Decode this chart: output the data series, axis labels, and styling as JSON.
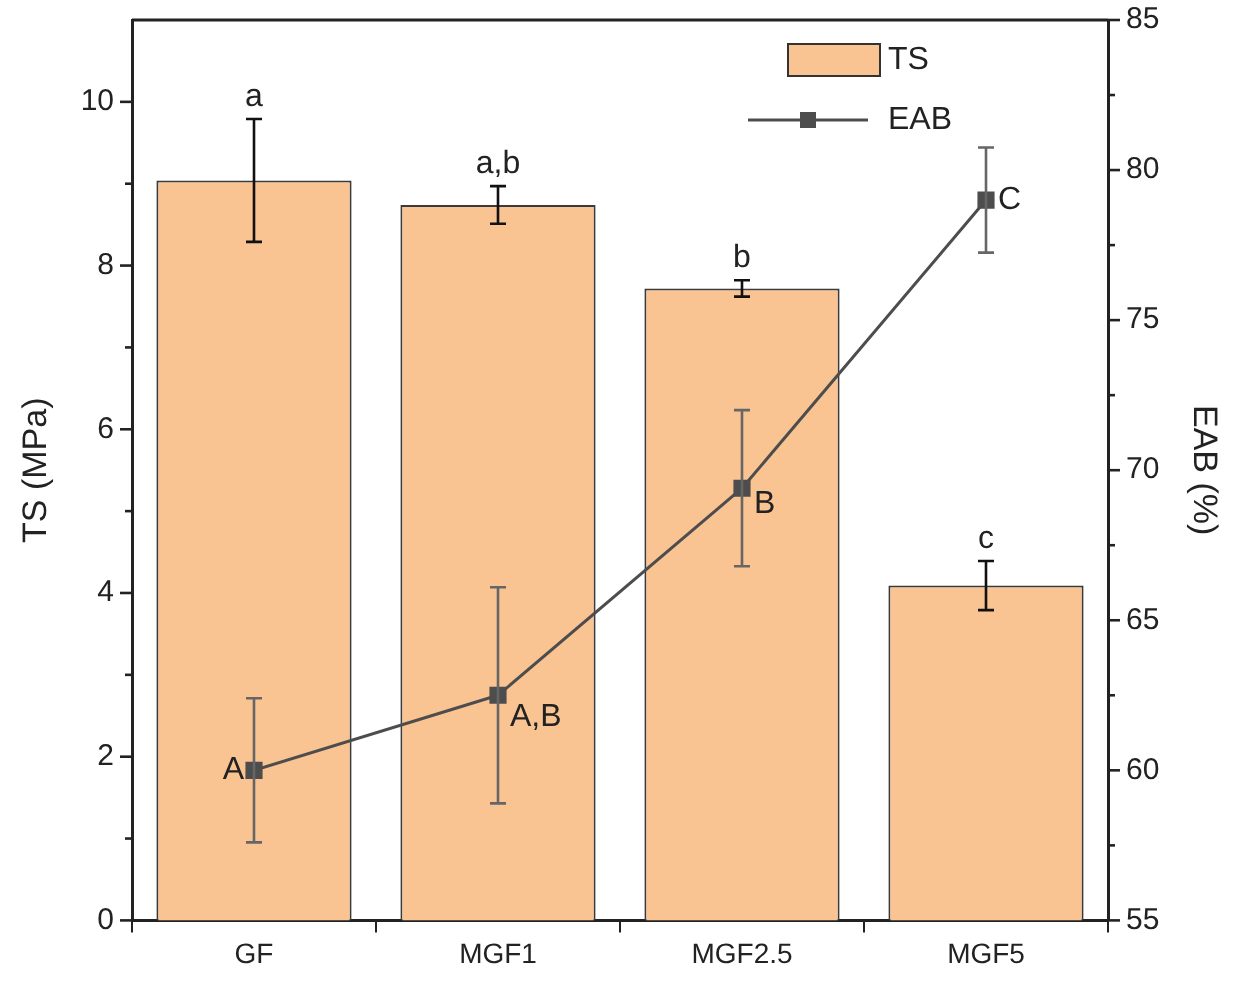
{
  "chart_data": {
    "type": "bar",
    "xlabel": null,
    "ylabel": "TS (MPa)",
    "y2label": "EAB (%)",
    "categories": [
      "GF",
      "MGF1",
      "MGF2.5",
      "MGF5"
    ],
    "series": [
      {
        "name": "TS",
        "color": "#fac392",
        "values": [
          9.04,
          8.74,
          7.72,
          4.09
        ],
        "errors": [
          0.75,
          0.23,
          0.1,
          0.3
        ]
      },
      {
        "name": "EAB",
        "type": "line",
        "axis": "y2",
        "color": "#4d4d4d",
        "values": [
          60.0,
          62.5,
          69.4,
          79.0
        ],
        "errors": [
          2.4,
          3.6,
          2.6,
          1.75
        ]
      }
    ],
    "ylim": [
      0,
      11
    ],
    "yticks": [
      0,
      {
        "value": 1,
        "label": null
      },
      2,
      {
        "value": 3,
        "label": null
      },
      4,
      {
        "value": 5,
        "label": null
      },
      6,
      {
        "value": 7,
        "label": null
      },
      8,
      {
        "value": 9,
        "label": null
      },
      10
    ],
    "y2lim": [
      55,
      85
    ],
    "y2ticks": [
      55,
      {
        "value": 57.5,
        "label": null
      },
      60,
      {
        "value": 62.5,
        "label": null
      },
      65,
      {
        "value": 67.5,
        "label": null
      },
      70,
      {
        "value": 72.5,
        "label": null
      },
      75,
      {
        "value": 77.5,
        "label": null
      },
      80,
      {
        "value": 82.5,
        "label": null
      },
      85
    ],
    "annotations": [
      {
        "text": "a",
        "x": "GF",
        "y": 9.79
      },
      {
        "text": "a,b",
        "x": "MGF1",
        "y": 8.97
      },
      {
        "text": "b",
        "x": "MGF2.5",
        "y": 7.82
      },
      {
        "text": "c",
        "x": "MGF5",
        "y": 4.39
      },
      "A",
      "A,B",
      "B",
      "C"
    ],
    "legend": "top right",
    "marker": "square",
    "line_style": "solid",
    "grid": false
  }
}
